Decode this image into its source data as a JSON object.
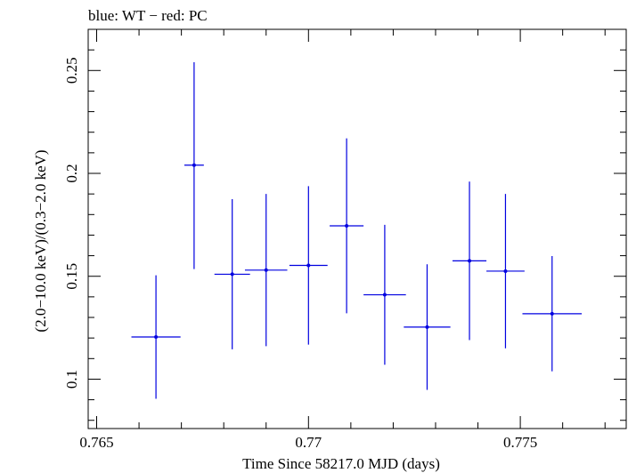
{
  "chart_data": {
    "type": "scatter",
    "title": "blue: WT − red: PC",
    "xlabel": "Time Since 58217.0 MJD (days)",
    "ylabel": "(2.0−10.0 keV)/(0.3−2.0 keV)",
    "xlim": [
      0.7648,
      0.7775
    ],
    "ylim": [
      0.076,
      0.27
    ],
    "x_ticks": [
      {
        "value": 0.765,
        "label": "0.765"
      },
      {
        "value": 0.77,
        "label": "0.77"
      },
      {
        "value": 0.775,
        "label": "0.775"
      }
    ],
    "y_ticks": [
      {
        "value": 0.1,
        "label": "0.1"
      },
      {
        "value": 0.15,
        "label": "0.15"
      },
      {
        "value": 0.2,
        "label": "0.2"
      },
      {
        "value": 0.25,
        "label": "0.25"
      }
    ],
    "grid": false,
    "series": [
      {
        "color": "#0000e0",
        "points": [
          {
            "x": 0.7664,
            "xerr": 0.00058,
            "y": 0.1205,
            "yerr_low": 0.03,
            "yerr_high": 0.03
          },
          {
            "x": 0.7673,
            "xerr": 0.00023,
            "y": 0.204,
            "yerr_low": 0.0505,
            "yerr_high": 0.05
          },
          {
            "x": 0.7682,
            "xerr": 0.00042,
            "y": 0.151,
            "yerr_low": 0.0365,
            "yerr_high": 0.0365
          },
          {
            "x": 0.769,
            "xerr": 0.0005,
            "y": 0.153,
            "yerr_low": 0.037,
            "yerr_high": 0.037
          },
          {
            "x": 0.77,
            "xerr": 0.00045,
            "y": 0.1553,
            "yerr_low": 0.0385,
            "yerr_high": 0.0385
          },
          {
            "x": 0.7709,
            "xerr": 0.0004,
            "y": 0.1745,
            "yerr_low": 0.0425,
            "yerr_high": 0.0425
          },
          {
            "x": 0.7718,
            "xerr": 0.0005,
            "y": 0.141,
            "yerr_low": 0.034,
            "yerr_high": 0.034
          },
          {
            "x": 0.7728,
            "xerr": 0.00055,
            "y": 0.1253,
            "yerr_low": 0.0305,
            "yerr_high": 0.0305
          },
          {
            "x": 0.7738,
            "xerr": 0.0004,
            "y": 0.1575,
            "yerr_low": 0.0385,
            "yerr_high": 0.0385
          },
          {
            "x": 0.77465,
            "xerr": 0.00045,
            "y": 0.1525,
            "yerr_low": 0.0375,
            "yerr_high": 0.0375
          },
          {
            "x": 0.77575,
            "xerr": 0.0007,
            "y": 0.1318,
            "yerr_low": 0.028,
            "yerr_high": 0.028
          }
        ]
      }
    ]
  }
}
